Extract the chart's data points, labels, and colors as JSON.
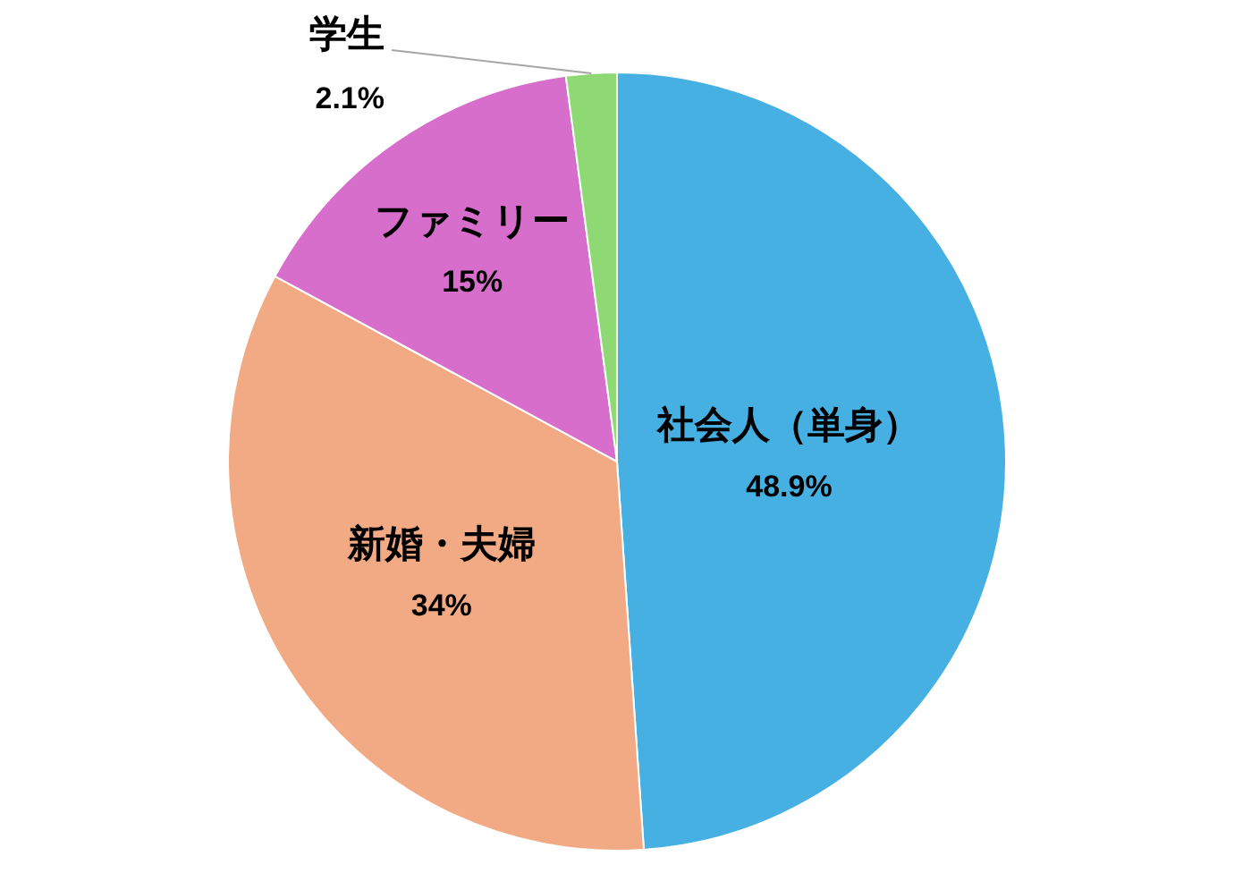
{
  "chart_data": {
    "type": "pie",
    "categories": [
      "社会人（単身）",
      "新婚・夫婦",
      "ファミリー",
      "学生"
    ],
    "values": [
      48.9,
      34,
      15,
      2.1
    ],
    "value_labels": [
      "48.9%",
      "34%",
      "15%",
      "2.1%"
    ],
    "colors": [
      "#45b0e1",
      "#f2aa84",
      "#d86ecc",
      "#8ed973"
    ],
    "legend": false
  }
}
